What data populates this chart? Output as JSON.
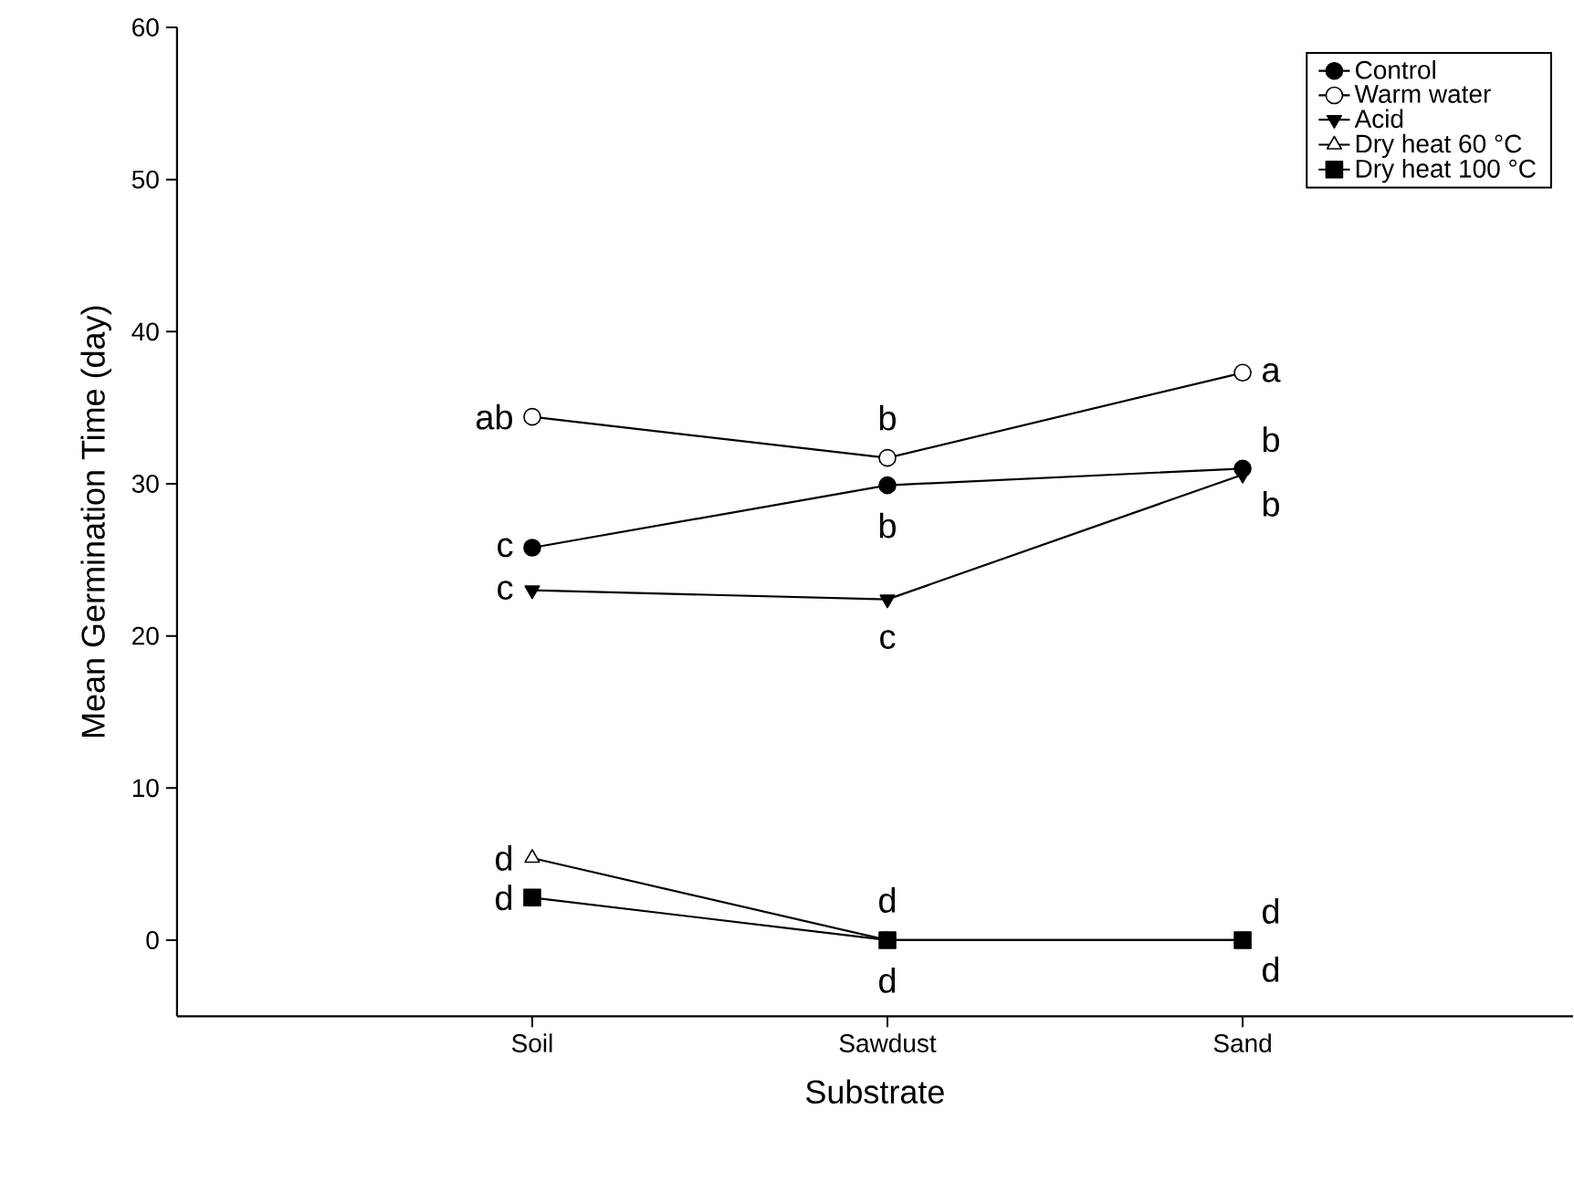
{
  "chart_data": {
    "type": "line",
    "xlabel": "Substrate",
    "ylabel": "Mean Germination Time (day)",
    "categories": [
      "Soil",
      "Sawdust",
      "Sand"
    ],
    "ylim": [
      -5,
      60
    ],
    "yticks": [
      0,
      10,
      20,
      30,
      40,
      50,
      60
    ],
    "grid": false,
    "legend": "top right",
    "series": [
      {
        "name": "Control",
        "color": "#000000",
        "marker": "circle",
        "values": [
          25.8,
          29.9,
          31.0
        ]
      },
      {
        "name": "Warm water",
        "color": "#000000",
        "marker": "circle_open",
        "values": [
          34.4,
          31.7,
          37.3
        ]
      },
      {
        "name": "Acid",
        "color": "#000000",
        "marker": "triangle_down",
        "values": [
          23.0,
          22.4,
          30.6
        ]
      },
      {
        "name": "Dry heat 60 °C",
        "color": "#000000",
        "marker": "triangle_open",
        "values": [
          5.4,
          0,
          0
        ]
      },
      {
        "name": "Dry heat 100 °C",
        "color": "#000000",
        "marker": "square",
        "values": [
          2.8,
          0,
          0
        ]
      }
    ],
    "annotations": [
      {
        "text": "ab",
        "x": "Soil",
        "y": 34.4
      },
      {
        "text": "c",
        "x": "Soil",
        "y": 25.8
      },
      {
        "text": "c",
        "x": "Soil",
        "y": 23.0
      },
      {
        "text": "d",
        "x": "Soil",
        "y": 5.4
      },
      {
        "text": "d",
        "x": "Soil",
        "y": 2.8
      },
      {
        "text": "b",
        "x": "Sawdust",
        "y": 31.7
      },
      {
        "text": "b",
        "x": "Sawdust",
        "y": 29.9
      },
      {
        "text": "c",
        "x": "Sawdust",
        "y": 22.4
      },
      {
        "text": "d",
        "x": "Sawdust",
        "y": 0
      },
      {
        "text": "d",
        "x": "Sawdust",
        "y": 0
      },
      {
        "text": "a",
        "x": "Sand",
        "y": 37.3
      },
      {
        "text": "b",
        "x": "Sand",
        "y": 31.0
      },
      {
        "text": "b",
        "x": "Sand",
        "y": 30.6
      },
      {
        "text": "d",
        "x": "Sand",
        "y": 0
      },
      {
        "text": "d",
        "x": "Sand",
        "y": 0
      }
    ]
  }
}
